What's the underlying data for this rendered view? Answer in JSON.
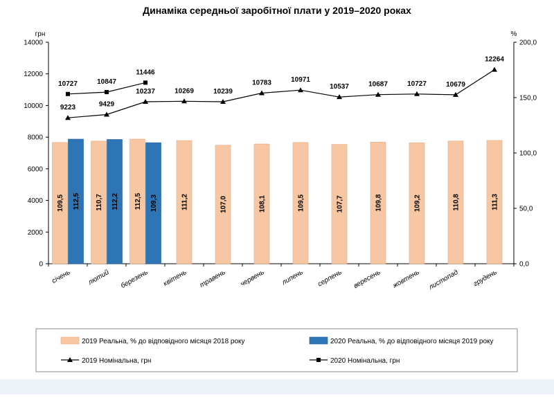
{
  "chart_data": {
    "type": "bar",
    "title": "Динаміка середньої заробітної плати у 2019–2020 роках",
    "y_left_unit": "грн",
    "y_right_unit": "%",
    "y_left_lim": [
      0,
      14000
    ],
    "y_right_lim": [
      0,
      200
    ],
    "y_left_ticks": [
      "0",
      "2000",
      "4000",
      "6000",
      "8000",
      "10000",
      "12000",
      "14000"
    ],
    "y_right_ticks": [
      "0,0",
      "50,0",
      "100,0",
      "150,0",
      "200,0"
    ],
    "categories": [
      "січень",
      "лютий",
      "березень",
      "квітень",
      "травень",
      "червень",
      "липень",
      "серпень",
      "вересень",
      "жовтень",
      "листопад",
      "грудень"
    ],
    "bar_series": [
      {
        "name": "2019 Реальна, % до відповідного місяця 2018 року",
        "color": "#f7c6a3",
        "values": [
          109.5,
          110.7,
          112.5,
          111.2,
          107.0,
          108.1,
          109.5,
          107.7,
          109.8,
          109.2,
          110.8,
          111.3
        ],
        "labels": [
          "109,5",
          "110,7",
          "112,5",
          "111,2",
          "107,0",
          "108,1",
          "109,5",
          "107,7",
          "109,8",
          "109,2",
          "110,8",
          "111,3"
        ]
      },
      {
        "name": "2020 Реальна, % до відповідного місяця 2019 року",
        "color": "#2e75b6",
        "values": [
          112.5,
          112.2,
          109.3,
          null,
          null,
          null,
          null,
          null,
          null,
          null,
          null,
          null
        ],
        "labels": [
          "112,5",
          "112,2",
          "109,3",
          "",
          "",
          "",
          "",
          "",
          "",
          "",
          "",
          ""
        ]
      }
    ],
    "line_series": [
      {
        "name": "2019 Номінальна, грн",
        "marker": "triangle",
        "values": [
          9223,
          9429,
          10237,
          10269,
          10239,
          10783,
          10971,
          10537,
          10687,
          10727,
          10679,
          12264
        ],
        "labels": [
          "9223",
          "9429",
          "10237",
          "10269",
          "10239",
          "10783",
          "10971",
          "10537",
          "10687",
          "10727",
          "10679",
          "12264"
        ]
      },
      {
        "name": "2020 Номінальна, грн",
        "marker": "square",
        "values": [
          10727,
          10847,
          11446,
          null,
          null,
          null,
          null,
          null,
          null,
          null,
          null,
          null
        ],
        "labels": [
          "10727",
          "10847",
          "11446",
          "",
          "",
          "",
          "",
          "",
          "",
          "",
          "",
          ""
        ]
      }
    ],
    "legend_placement": "bottom"
  }
}
